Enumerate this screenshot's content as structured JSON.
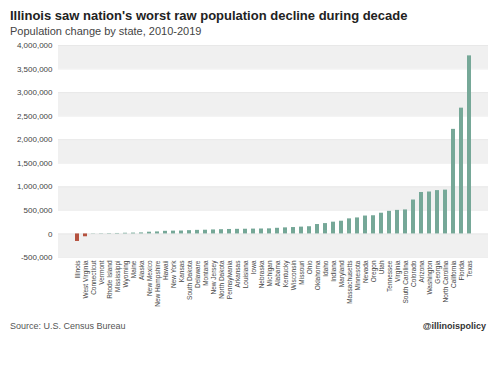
{
  "chart_data": {
    "type": "bar",
    "title": "Illinois saw nation's worst raw population decline during decade",
    "subtitle": "Population change by state, 2010-2019",
    "annotations": [
      "Source: U.S. Census Bureau",
      "@illinoispolicy"
    ],
    "categories": [
      "Illinois",
      "West Virginia",
      "Connecticut",
      "Vermont",
      "Rhode Island",
      "Mississippi",
      "Wyoming",
      "Maine",
      "Alaska",
      "New Mexico",
      "New Hampshire",
      "Hawaii",
      "New York",
      "Kansas",
      "South Dakota",
      "Delaware",
      "Montana",
      "New Jersey",
      "North Dakota",
      "Pennsylvania",
      "Arkansas",
      "Louisiana",
      "Iowa",
      "Nebraska",
      "Michigan",
      "Alabama",
      "Kentucky",
      "Wisconsin",
      "Missouri",
      "Ohio",
      "Oklahoma",
      "Idaho",
      "Indiana",
      "Maryland",
      "Massachusetts",
      "Minnesota",
      "Nevada",
      "Oregon",
      "Utah",
      "Tennessee",
      "Virginia",
      "South Carolina",
      "Colorado",
      "Arizona",
      "Washington",
      "Georgia",
      "North Carolina",
      "California",
      "Florida",
      "Texas"
    ],
    "values": [
      -159751,
      -60000,
      5000,
      6000,
      8000,
      10000,
      15000,
      18000,
      22000,
      37000,
      43000,
      56000,
      60000,
      62000,
      70000,
      76000,
      79000,
      85000,
      90000,
      95000,
      98000,
      100000,
      103000,
      105000,
      108000,
      120000,
      129000,
      136000,
      145000,
      153000,
      200000,
      220000,
      250000,
      270000,
      320000,
      340000,
      380000,
      386000,
      440000,
      480000,
      500000,
      510000,
      720000,
      880000,
      890000,
      920000,
      930000,
      2220000,
      2670000,
      3780000
    ],
    "colors": [
      "#b5523f",
      "#b5523f",
      "#76a898",
      "#76a898",
      "#76a898",
      "#76a898",
      "#76a898",
      "#76a898",
      "#76a898",
      "#76a898",
      "#76a898",
      "#76a898",
      "#76a898",
      "#76a898",
      "#76a898",
      "#76a898",
      "#76a898",
      "#76a898",
      "#76a898",
      "#76a898",
      "#76a898",
      "#76a898",
      "#76a898",
      "#76a898",
      "#76a898",
      "#76a898",
      "#76a898",
      "#76a898",
      "#76a898",
      "#76a898",
      "#76a898",
      "#76a898",
      "#76a898",
      "#76a898",
      "#76a898",
      "#76a898",
      "#76a898",
      "#76a898",
      "#76a898",
      "#76a898",
      "#76a898",
      "#76a898",
      "#76a898",
      "#76a898",
      "#76a898",
      "#76a898",
      "#76a898",
      "#76a898",
      "#76a898",
      "#76a898"
    ],
    "ylim": [
      -500000,
      4000000
    ],
    "yticks": [
      {
        "value": -500000,
        "label": "-500,000"
      },
      0,
      {
        "value": 500000,
        "label": "500,000"
      },
      {
        "value": 1000000,
        "label": "1,000,000"
      },
      {
        "value": 1500000,
        "label": "1,500,000"
      },
      {
        "value": 2000000,
        "label": "2,000,000"
      },
      {
        "value": 2500000,
        "label": "2,500,000"
      },
      {
        "value": 3000000,
        "label": "3,000,000"
      },
      {
        "value": 3500000,
        "label": "3,500,000"
      },
      {
        "value": 4000000,
        "label": "4,000,000"
      }
    ],
    "grid": true
  }
}
